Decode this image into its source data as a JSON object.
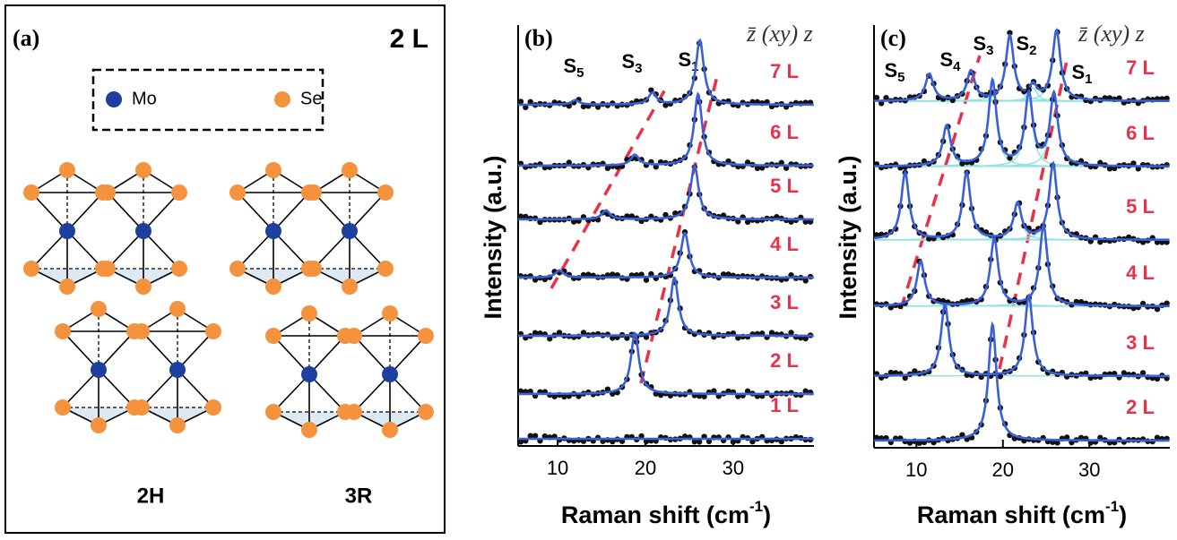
{
  "panel_a": {
    "label": "(a)",
    "title": "2 L",
    "legend": [
      {
        "name": "Mo",
        "color": "#1f3fa0"
      },
      {
        "name": "Se",
        "color": "#f5923e"
      }
    ],
    "structures": [
      "2H",
      "3R"
    ]
  },
  "chart_data": [
    {
      "type": "spectra",
      "label": "(b)",
      "notation": "z̄ (xy) z",
      "xlabel": {
        "base": "Raman shift (cm",
        "sup": "-1",
        "tail": ")"
      },
      "ylabel": "Intensity (a.u.)",
      "xlim": [
        5.5,
        39.2
      ],
      "xticks": [
        10,
        20,
        30
      ],
      "ylim": [
        0,
        470
      ],
      "components": false,
      "peak_labels": [
        {
          "base": "S",
          "sub": "5"
        },
        {
          "base": "S",
          "sub": "3"
        },
        {
          "base": "S",
          "sub": "1"
        }
      ],
      "series": [
        {
          "name": "7 L",
          "offset": 381,
          "peaks": [
            [
              12,
              5
            ],
            [
              20.8,
              13
            ],
            [
              26.2,
              72
            ]
          ]
        },
        {
          "name": "6 L",
          "offset": 313,
          "peaks": [
            [
              18.8,
              12
            ],
            [
              26.0,
              80
            ]
          ]
        },
        {
          "name": "5 L",
          "offset": 253,
          "peaks": [
            [
              15.5,
              10
            ],
            [
              25.6,
              60
            ]
          ]
        },
        {
          "name": "4 L",
          "offset": 188,
          "peaks": [
            [
              10.2,
              8
            ],
            [
              24.5,
              50
            ]
          ]
        },
        {
          "name": "3 L",
          "offset": 123,
          "peaks": [
            [
              23.3,
              65
            ]
          ]
        },
        {
          "name": "2 L",
          "offset": 58,
          "peaks": [
            [
              18.8,
              68
            ]
          ]
        },
        {
          "name": "1 L",
          "offset": 8,
          "peaks": []
        }
      ]
    },
    {
      "type": "spectra",
      "label": "(c)",
      "notation": "z̄ (xy) z",
      "xlabel": {
        "base": "Raman shift (cm",
        "sup": "-1",
        "tail": ")"
      },
      "ylabel": "Intensity (a.u.)",
      "xlim": [
        5.1,
        39.3
      ],
      "xticks": [
        10,
        20,
        30
      ],
      "ylim": [
        0,
        472
      ],
      "components": true,
      "peak_labels": [
        {
          "base": "S",
          "sub": "5"
        },
        {
          "base": "S",
          "sub": "4"
        },
        {
          "base": "S",
          "sub": "3"
        },
        {
          "base": "S",
          "sub": "2"
        },
        {
          "base": "S",
          "sub": "1"
        }
      ],
      "series": [
        {
          "name": "7 L",
          "offset": 387,
          "peaks": [
            [
              11.5,
              30
            ],
            [
              16.3,
              33
            ],
            [
              20.8,
              72
            ],
            [
              23.5,
              15
            ],
            [
              26.2,
              78
            ]
          ]
        },
        {
          "name": "6 L",
          "offset": 314,
          "peaks": [
            [
              13.5,
              45
            ],
            [
              18.8,
              95
            ],
            [
              23.0,
              80
            ],
            [
              25.9,
              80
            ]
          ]
        },
        {
          "name": "5 L",
          "offset": 232,
          "peaks": [
            [
              8.7,
              75
            ],
            [
              15.8,
              75
            ],
            [
              21.7,
              40
            ],
            [
              25.8,
              85
            ]
          ]
        },
        {
          "name": "4 L",
          "offset": 158,
          "peaks": [
            [
              10.5,
              50
            ],
            [
              19.0,
              75
            ],
            [
              24.7,
              90
            ]
          ]
        },
        {
          "name": "3 L",
          "offset": 80,
          "peaks": [
            [
              13.3,
              80
            ],
            [
              23.0,
              90
            ]
          ]
        },
        {
          "name": "2 L",
          "offset": 8,
          "peaks": [
            [
              18.8,
              130
            ]
          ]
        }
      ]
    }
  ]
}
